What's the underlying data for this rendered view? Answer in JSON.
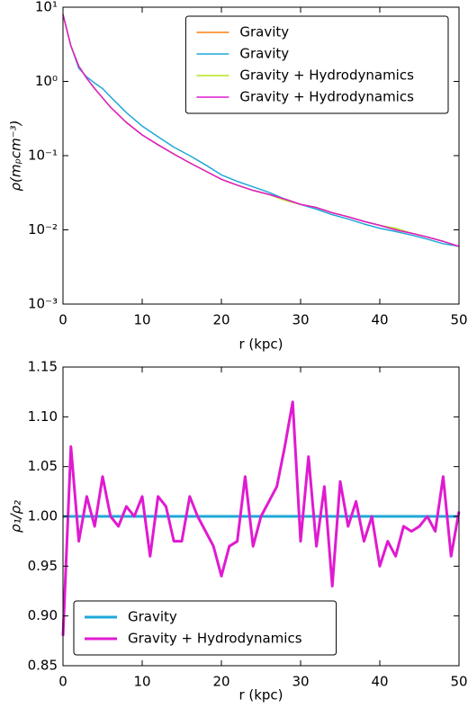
{
  "chart_data": [
    {
      "type": "line",
      "ylabel": "ρ(mₚcm⁻³)",
      "xlabel": "r (kpc)",
      "ylog": true,
      "legend": "upper right",
      "linewidth": 1.5,
      "x": [
        0,
        1,
        2,
        3,
        4,
        5,
        6,
        8,
        10,
        12,
        14,
        16,
        18,
        20,
        22,
        24,
        26,
        28,
        30,
        32,
        34,
        36,
        38,
        40,
        42,
        44,
        46,
        48,
        50
      ],
      "series": [
        {
          "name": "Gravity",
          "color": "#ff7f0e",
          "values": [
            8,
            3,
            1.6,
            1.1,
            0.8,
            0.6,
            0.45,
            0.28,
            0.19,
            0.14,
            0.105,
            0.08,
            0.062,
            0.048,
            0.04,
            0.034,
            0.03,
            0.026,
            0.022,
            0.02,
            0.017,
            0.015,
            0.013,
            0.0115,
            0.01,
            0.009,
            0.008,
            0.007,
            0.006
          ]
        },
        {
          "name": "Gravity",
          "color": "#1fa8d8",
          "values": [
            8,
            3,
            1.5,
            1.15,
            0.95,
            0.8,
            0.62,
            0.38,
            0.25,
            0.18,
            0.13,
            0.1,
            0.075,
            0.055,
            0.045,
            0.038,
            0.032,
            0.026,
            0.022,
            0.019,
            0.016,
            0.014,
            0.012,
            0.0105,
            0.0095,
            0.0085,
            0.0075,
            0.0065,
            0.006
          ]
        },
        {
          "name": "Gravity + Hydrodynamics",
          "color": "#b3e61a",
          "values": [
            8,
            3,
            1.6,
            1.1,
            0.8,
            0.6,
            0.45,
            0.28,
            0.19,
            0.14,
            0.105,
            0.08,
            0.062,
            0.048,
            0.04,
            0.034,
            0.03,
            0.025,
            0.022,
            0.02,
            0.017,
            0.015,
            0.013,
            0.0115,
            0.0105,
            0.009,
            0.008,
            0.007,
            0.006
          ]
        },
        {
          "name": "Gravity + Hydrodynamics",
          "color": "#e01ad0",
          "values": [
            8,
            3,
            1.6,
            1.1,
            0.8,
            0.6,
            0.45,
            0.28,
            0.19,
            0.14,
            0.105,
            0.08,
            0.062,
            0.048,
            0.04,
            0.034,
            0.03,
            0.026,
            0.022,
            0.02,
            0.017,
            0.015,
            0.013,
            0.0115,
            0.01,
            0.009,
            0.008,
            0.007,
            0.006
          ]
        }
      ],
      "xlim": [
        0,
        50
      ],
      "xticks": [
        0,
        10,
        20,
        30,
        40,
        50
      ],
      "ylim": [
        0.001,
        10
      ],
      "yticks": [
        {
          "value": 0.001,
          "label": "10⁻³"
        },
        {
          "value": 0.01,
          "label": "10⁻²"
        },
        {
          "value": 0.1,
          "label": "10⁻¹"
        },
        {
          "value": 1,
          "label": "10⁰"
        },
        {
          "value": 10,
          "label": "10¹"
        }
      ]
    },
    {
      "type": "line",
      "ylabel": "ρ₁/ρ₂",
      "xlabel": "r (kpc)",
      "ylog": false,
      "legend": "lower left",
      "linewidth": 3,
      "x": [
        0,
        1,
        2,
        3,
        4,
        5,
        6,
        7,
        8,
        9,
        10,
        11,
        12,
        13,
        14,
        15,
        16,
        17,
        18,
        19,
        20,
        21,
        22,
        23,
        24,
        25,
        26,
        27,
        28,
        29,
        30,
        31,
        32,
        33,
        34,
        35,
        36,
        37,
        38,
        39,
        40,
        41,
        42,
        43,
        44,
        45,
        46,
        47,
        48,
        49,
        50
      ],
      "series": [
        {
          "name": "Gravity",
          "color": "#1fa8d8",
          "values": [
            1,
            1,
            1,
            1,
            1,
            1,
            1,
            1,
            1,
            1,
            1,
            1,
            1,
            1,
            1,
            1,
            1,
            1,
            1,
            1,
            1,
            1,
            1,
            1,
            1,
            1,
            1,
            1,
            1,
            1,
            1,
            1,
            1,
            1,
            1,
            1,
            1,
            1,
            1,
            1,
            1,
            1,
            1,
            1,
            1,
            1,
            1,
            1,
            1,
            1,
            1
          ]
        },
        {
          "name": "Gravity + Hydrodynamics",
          "color": "#e01ad0",
          "values": [
            0.88,
            1.07,
            0.975,
            1.02,
            0.99,
            1.04,
            1.0,
            0.99,
            1.01,
            1.0,
            1.02,
            0.96,
            1.02,
            1.01,
            0.975,
            0.975,
            1.02,
            1.0,
            0.985,
            0.97,
            0.94,
            0.97,
            0.975,
            1.04,
            0.97,
            1.0,
            1.015,
            1.03,
            1.07,
            1.115,
            0.975,
            1.06,
            0.97,
            1.03,
            0.93,
            1.035,
            0.99,
            1.015,
            0.975,
            1.0,
            0.95,
            0.975,
            0.96,
            0.99,
            0.985,
            0.99,
            1.0,
            0.985,
            1.04,
            0.96,
            1.005
          ]
        }
      ],
      "xlim": [
        0,
        50
      ],
      "xticks": [
        0,
        10,
        20,
        30,
        40,
        50
      ],
      "ylim": [
        0.85,
        1.15
      ],
      "yticks": [
        0.85,
        {
          "value": 0.9,
          "label": "0.90"
        },
        0.95,
        {
          "value": 1.0,
          "label": "1.00"
        },
        1.05,
        {
          "value": 1.1,
          "label": "1.10"
        },
        1.15
      ]
    }
  ]
}
